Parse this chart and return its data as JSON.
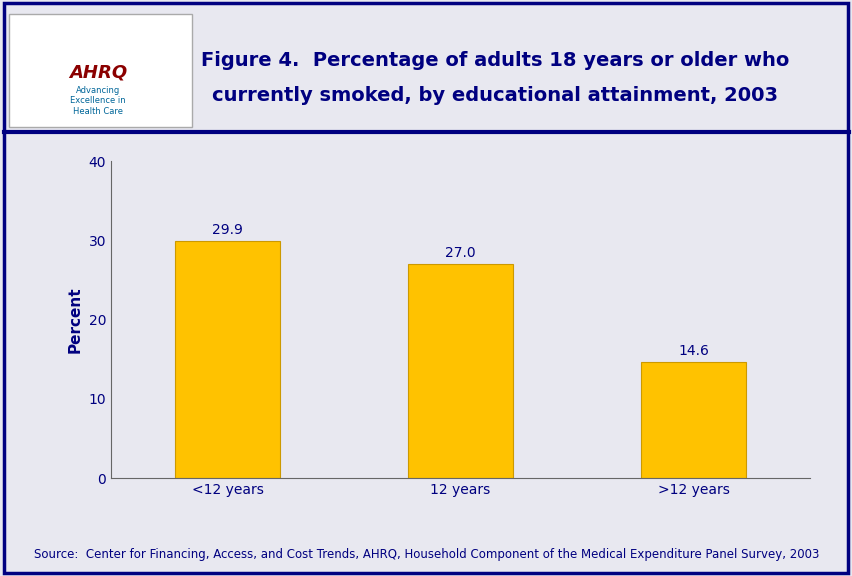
{
  "categories": [
    "<12 years",
    "12 years",
    ">12 years"
  ],
  "values": [
    29.9,
    27.0,
    14.6
  ],
  "bar_color": "#FFC200",
  "bar_edge_color": "#CC9900",
  "ylabel": "Percent",
  "ylim": [
    0,
    40
  ],
  "yticks": [
    0,
    10,
    20,
    30,
    40
  ],
  "title_line1": "Figure 4.  Percentage of adults 18 years or older who",
  "title_line2": "currently smoked, by educational attainment, 2003",
  "title_color": "#000080",
  "source_text": "Source:  Center for Financing, Access, and Cost Trends, AHRQ, Household Component of the Medical Expenditure Panel Survey, 2003",
  "source_color": "#000080",
  "background_color": "#E8E8F0",
  "border_color": "#000080",
  "divider_color": "#000080",
  "ylabel_color": "#000080",
  "tick_label_color": "#000080",
  "value_label_color": "#000080",
  "title_fontsize": 14,
  "source_fontsize": 8.5,
  "ylabel_fontsize": 11,
  "tick_fontsize": 10,
  "value_fontsize": 10
}
